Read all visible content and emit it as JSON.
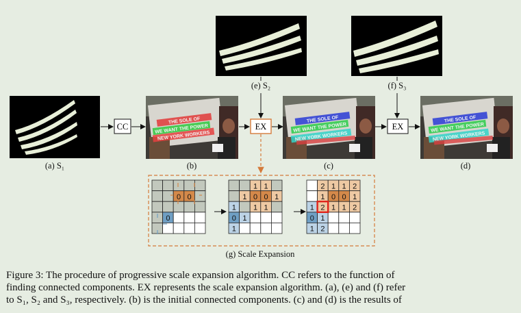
{
  "labels": {
    "a": "(a) S₁",
    "b": "(b)",
    "c": "(c)",
    "d": "(d)",
    "e": "(e) S₂",
    "f": "(f) S₃",
    "g": "(g) Scale Expansion"
  },
  "boxes": {
    "cc": "CC",
    "ex1": "EX",
    "ex2": "EX"
  },
  "photo_text": {
    "row1": "THE SOLE OF",
    "row2": "WE WANT THE POWER",
    "row3": "NEW YORK WORKERS"
  },
  "grids": {
    "grid1": [
      [
        "",
        "",
        "",
        "",
        ""
      ],
      [
        "",
        "",
        "0",
        "0",
        ""
      ],
      [
        "",
        "",
        "",
        "",
        ""
      ],
      [
        "",
        "0",
        "",
        "",
        ""
      ],
      [
        "",
        "",
        "",
        "",
        ""
      ]
    ],
    "grid2": [
      [
        "",
        "",
        "1",
        "1",
        ""
      ],
      [
        "",
        "1",
        "0",
        "0",
        "1"
      ],
      [
        "1",
        "",
        "1",
        "1",
        ""
      ],
      [
        "0",
        "1",
        "",
        "",
        ""
      ],
      [
        "1",
        "",
        "",
        "",
        ""
      ]
    ],
    "grid3": [
      [
        "",
        "2",
        "1",
        "1",
        "2"
      ],
      [
        "",
        "1",
        "0",
        "0",
        "1"
      ],
      [
        "1",
        "2",
        "1",
        "1",
        "2"
      ],
      [
        "0",
        "1",
        "",
        "",
        ""
      ],
      [
        "1",
        "2",
        "",
        "",
        ""
      ]
    ]
  },
  "caption": {
    "line1": "Figure 3: The procedure of progressive scale expansion algorithm. CC refers to the function of",
    "line2": "finding connected components. EX represents the scale expansion algorithm. (a), (e) and (f) refer",
    "line3": "to S₁, S₂ and S₃, respectively. (b) is the initial connected components. (c) and (d) is the results of"
  },
  "colors": {
    "background": "#e6ede2",
    "orange": "#d4894a",
    "blue": "#6f9fc4",
    "highlight": "#e0241b",
    "ex_border": "#d47a3a"
  }
}
